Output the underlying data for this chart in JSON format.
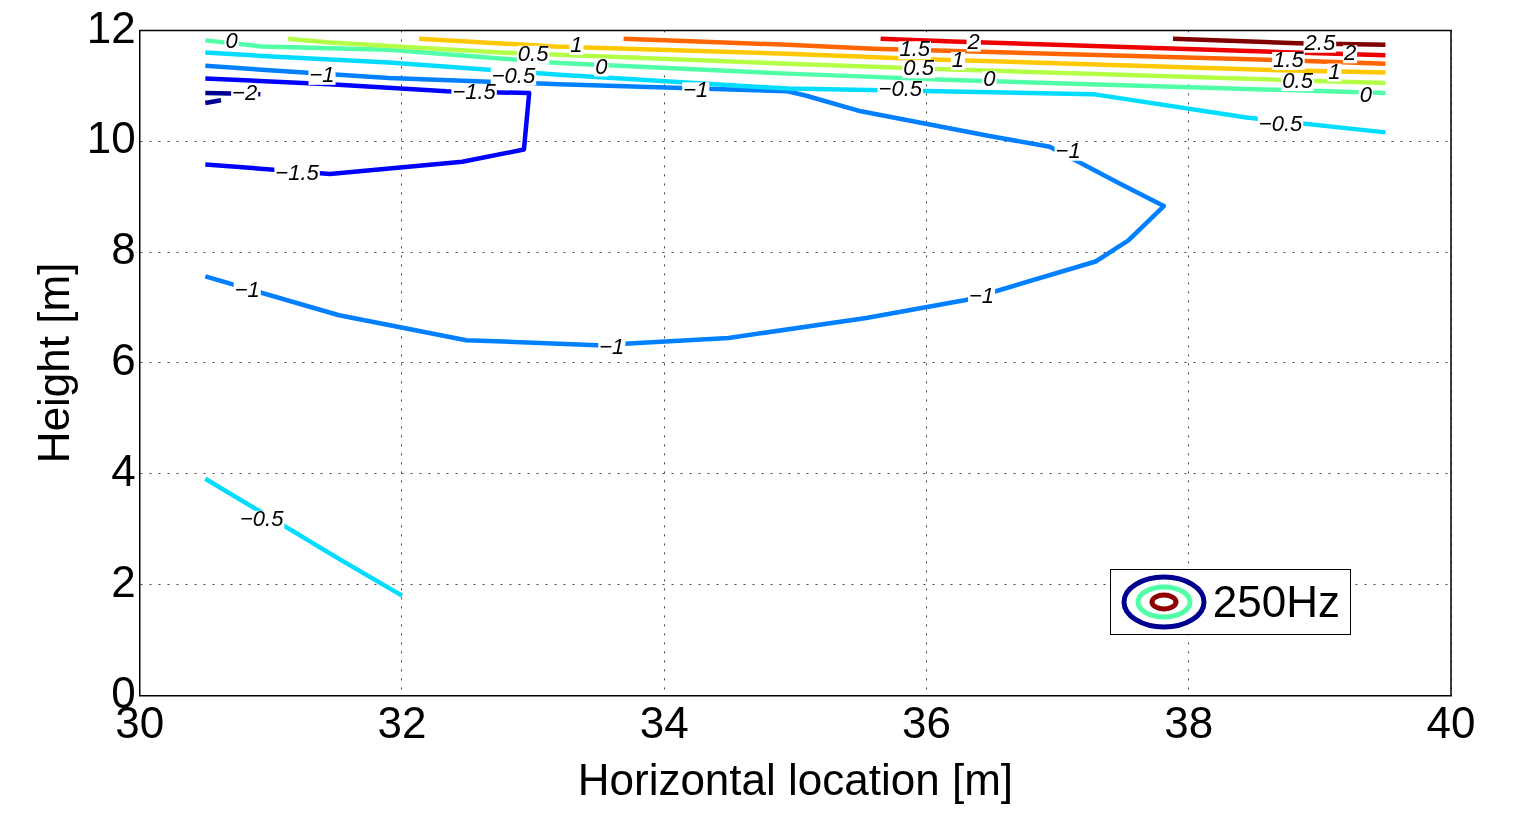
{
  "chart_data": {
    "type": "line",
    "xlabel": "Horizontal location [m]",
    "ylabel": "Height [m]",
    "xlim": [
      30,
      40
    ],
    "xticks": [
      30,
      32,
      34,
      36,
      38,
      40
    ],
    "ylim": [
      0,
      12
    ],
    "yticks": [
      0,
      2,
      4,
      6,
      8,
      10,
      12
    ],
    "grid": true,
    "line_style": "solid",
    "marker": "none",
    "series": [
      {
        "color": "#800000",
        "x": [
          37.88,
          38.83,
          39.5
        ],
        "values": [
          11.85,
          11.77,
          11.74
        ]
      },
      {
        "color": "#ee0000",
        "x": [
          35.65,
          36.2,
          39.5
        ],
        "values": [
          11.85,
          11.8,
          11.55
        ]
      },
      {
        "color": "#ff6600",
        "x": [
          33.69,
          34.94,
          35.6,
          38.6,
          39.5
        ],
        "values": [
          11.85,
          11.74,
          11.67,
          11.47,
          11.4
        ]
      },
      {
        "color": "#ffc800",
        "x": [
          32.13,
          33.16,
          34.94,
          36.0,
          38.57,
          39.5
        ],
        "values": [
          11.85,
          11.71,
          11.58,
          11.48,
          11.29,
          11.24
        ]
      },
      {
        "color": "#b4ff48",
        "x": [
          31.13,
          31.45,
          32.75,
          34.94,
          36.14,
          38.66,
          39.5
        ],
        "values": [
          11.85,
          11.78,
          11.6,
          11.4,
          11.3,
          11.11,
          11.05
        ]
      },
      {
        "color": "#50ffa8",
        "x": [
          30.5,
          30.93,
          31.9,
          33.2,
          34.94,
          36.25,
          39.5
        ],
        "values": [
          11.82,
          11.71,
          11.65,
          11.41,
          11.22,
          11.1,
          10.87
        ]
      },
      {
        "color": "#00ddff",
        "x": [
          30.5,
          30.93,
          31.9,
          33.2,
          34.94,
          37.27,
          38.44,
          39.5
        ],
        "values": [
          11.6,
          11.54,
          11.42,
          11.2,
          10.95,
          10.85,
          10.43,
          10.16
        ]
      },
      {
        "color": "#00ddff",
        "x": [
          30.5,
          31.2,
          31.5,
          32
        ],
        "values": [
          3.91,
          2.92,
          2.49,
          1.8
        ]
      },
      {
        "color": "#0080ff",
        "x": [
          30.5,
          30.93,
          31.9,
          33.2,
          34.94,
          35.07,
          35.5,
          36.49,
          36.94,
          37.48,
          37.81,
          37.54,
          37.29,
          36.31,
          35.54,
          34.49,
          33.49,
          32.49,
          31.52,
          30.5
        ],
        "values": [
          11.36,
          11.29,
          11.14,
          11.03,
          10.9,
          10.83,
          10.54,
          10.09,
          9.9,
          9.23,
          8.83,
          8.21,
          7.83,
          7.14,
          6.81,
          6.45,
          6.32,
          6.41,
          6.86,
          7.56
        ]
      },
      {
        "color": "#0000ff",
        "x": [
          30.5,
          31.45,
          32.34,
          32.97,
          32.93,
          32.46,
          31.45,
          30.5
        ],
        "values": [
          11.13,
          11.03,
          10.9,
          10.87,
          9.85,
          9.63,
          9.41,
          9.58
        ]
      },
      {
        "color": "#000090",
        "x": [
          30.5,
          30.92,
          30.76,
          30.5,
          30.62
        ],
        "values": [
          10.87,
          10.85,
          null,
          10.69,
          10.74
        ]
      }
    ],
    "annotations": [
      {
        "text": "2.5",
        "x": 39.0,
        "y": 11.76
      },
      {
        "text": "2",
        "x": 36.36,
        "y": 11.78
      },
      {
        "text": "2",
        "x": 39.23,
        "y": 11.57
      },
      {
        "text": "1.5",
        "x": 35.91,
        "y": 11.64
      },
      {
        "text": "1.5",
        "x": 38.76,
        "y": 11.45
      },
      {
        "text": "1",
        "x": 33.33,
        "y": 11.72
      },
      {
        "text": "1",
        "x": 36.24,
        "y": 11.45
      },
      {
        "text": "1",
        "x": 39.11,
        "y": 11.24
      },
      {
        "text": "0.5",
        "x": 33.0,
        "y": 11.56
      },
      {
        "text": "0.5",
        "x": 35.94,
        "y": 11.3
      },
      {
        "text": "0.5",
        "x": 38.83,
        "y": 11.07
      },
      {
        "text": "0",
        "x": 30.7,
        "y": 11.8
      },
      {
        "text": "0",
        "x": 33.52,
        "y": 11.33
      },
      {
        "text": "0",
        "x": 36.48,
        "y": 11.1
      },
      {
        "text": "0",
        "x": 39.35,
        "y": 10.82
      },
      {
        "text": "−0.5",
        "x": 32.85,
        "y": 11.17
      },
      {
        "text": "−0.5",
        "x": 35.8,
        "y": 10.93
      },
      {
        "text": "−0.5",
        "x": 38.7,
        "y": 10.3
      },
      {
        "text": "−0.5",
        "x": 30.93,
        "y": 3.17
      },
      {
        "text": "−1",
        "x": 31.39,
        "y": 11.18
      },
      {
        "text": "−1",
        "x": 34.24,
        "y": 10.9
      },
      {
        "text": "−1",
        "x": 37.08,
        "y": 9.81
      },
      {
        "text": "−1",
        "x": 36.42,
        "y": 7.2
      },
      {
        "text": "−1",
        "x": 33.6,
        "y": 6.28
      },
      {
        "text": "−1",
        "x": 30.82,
        "y": 7.3
      },
      {
        "text": "−1.5",
        "x": 32.55,
        "y": 10.87
      },
      {
        "text": "−1.5",
        "x": 31.2,
        "y": 9.41
      },
      {
        "text": "−2",
        "x": 30.8,
        "y": 10.86
      },
      "250Hz"
    ]
  }
}
